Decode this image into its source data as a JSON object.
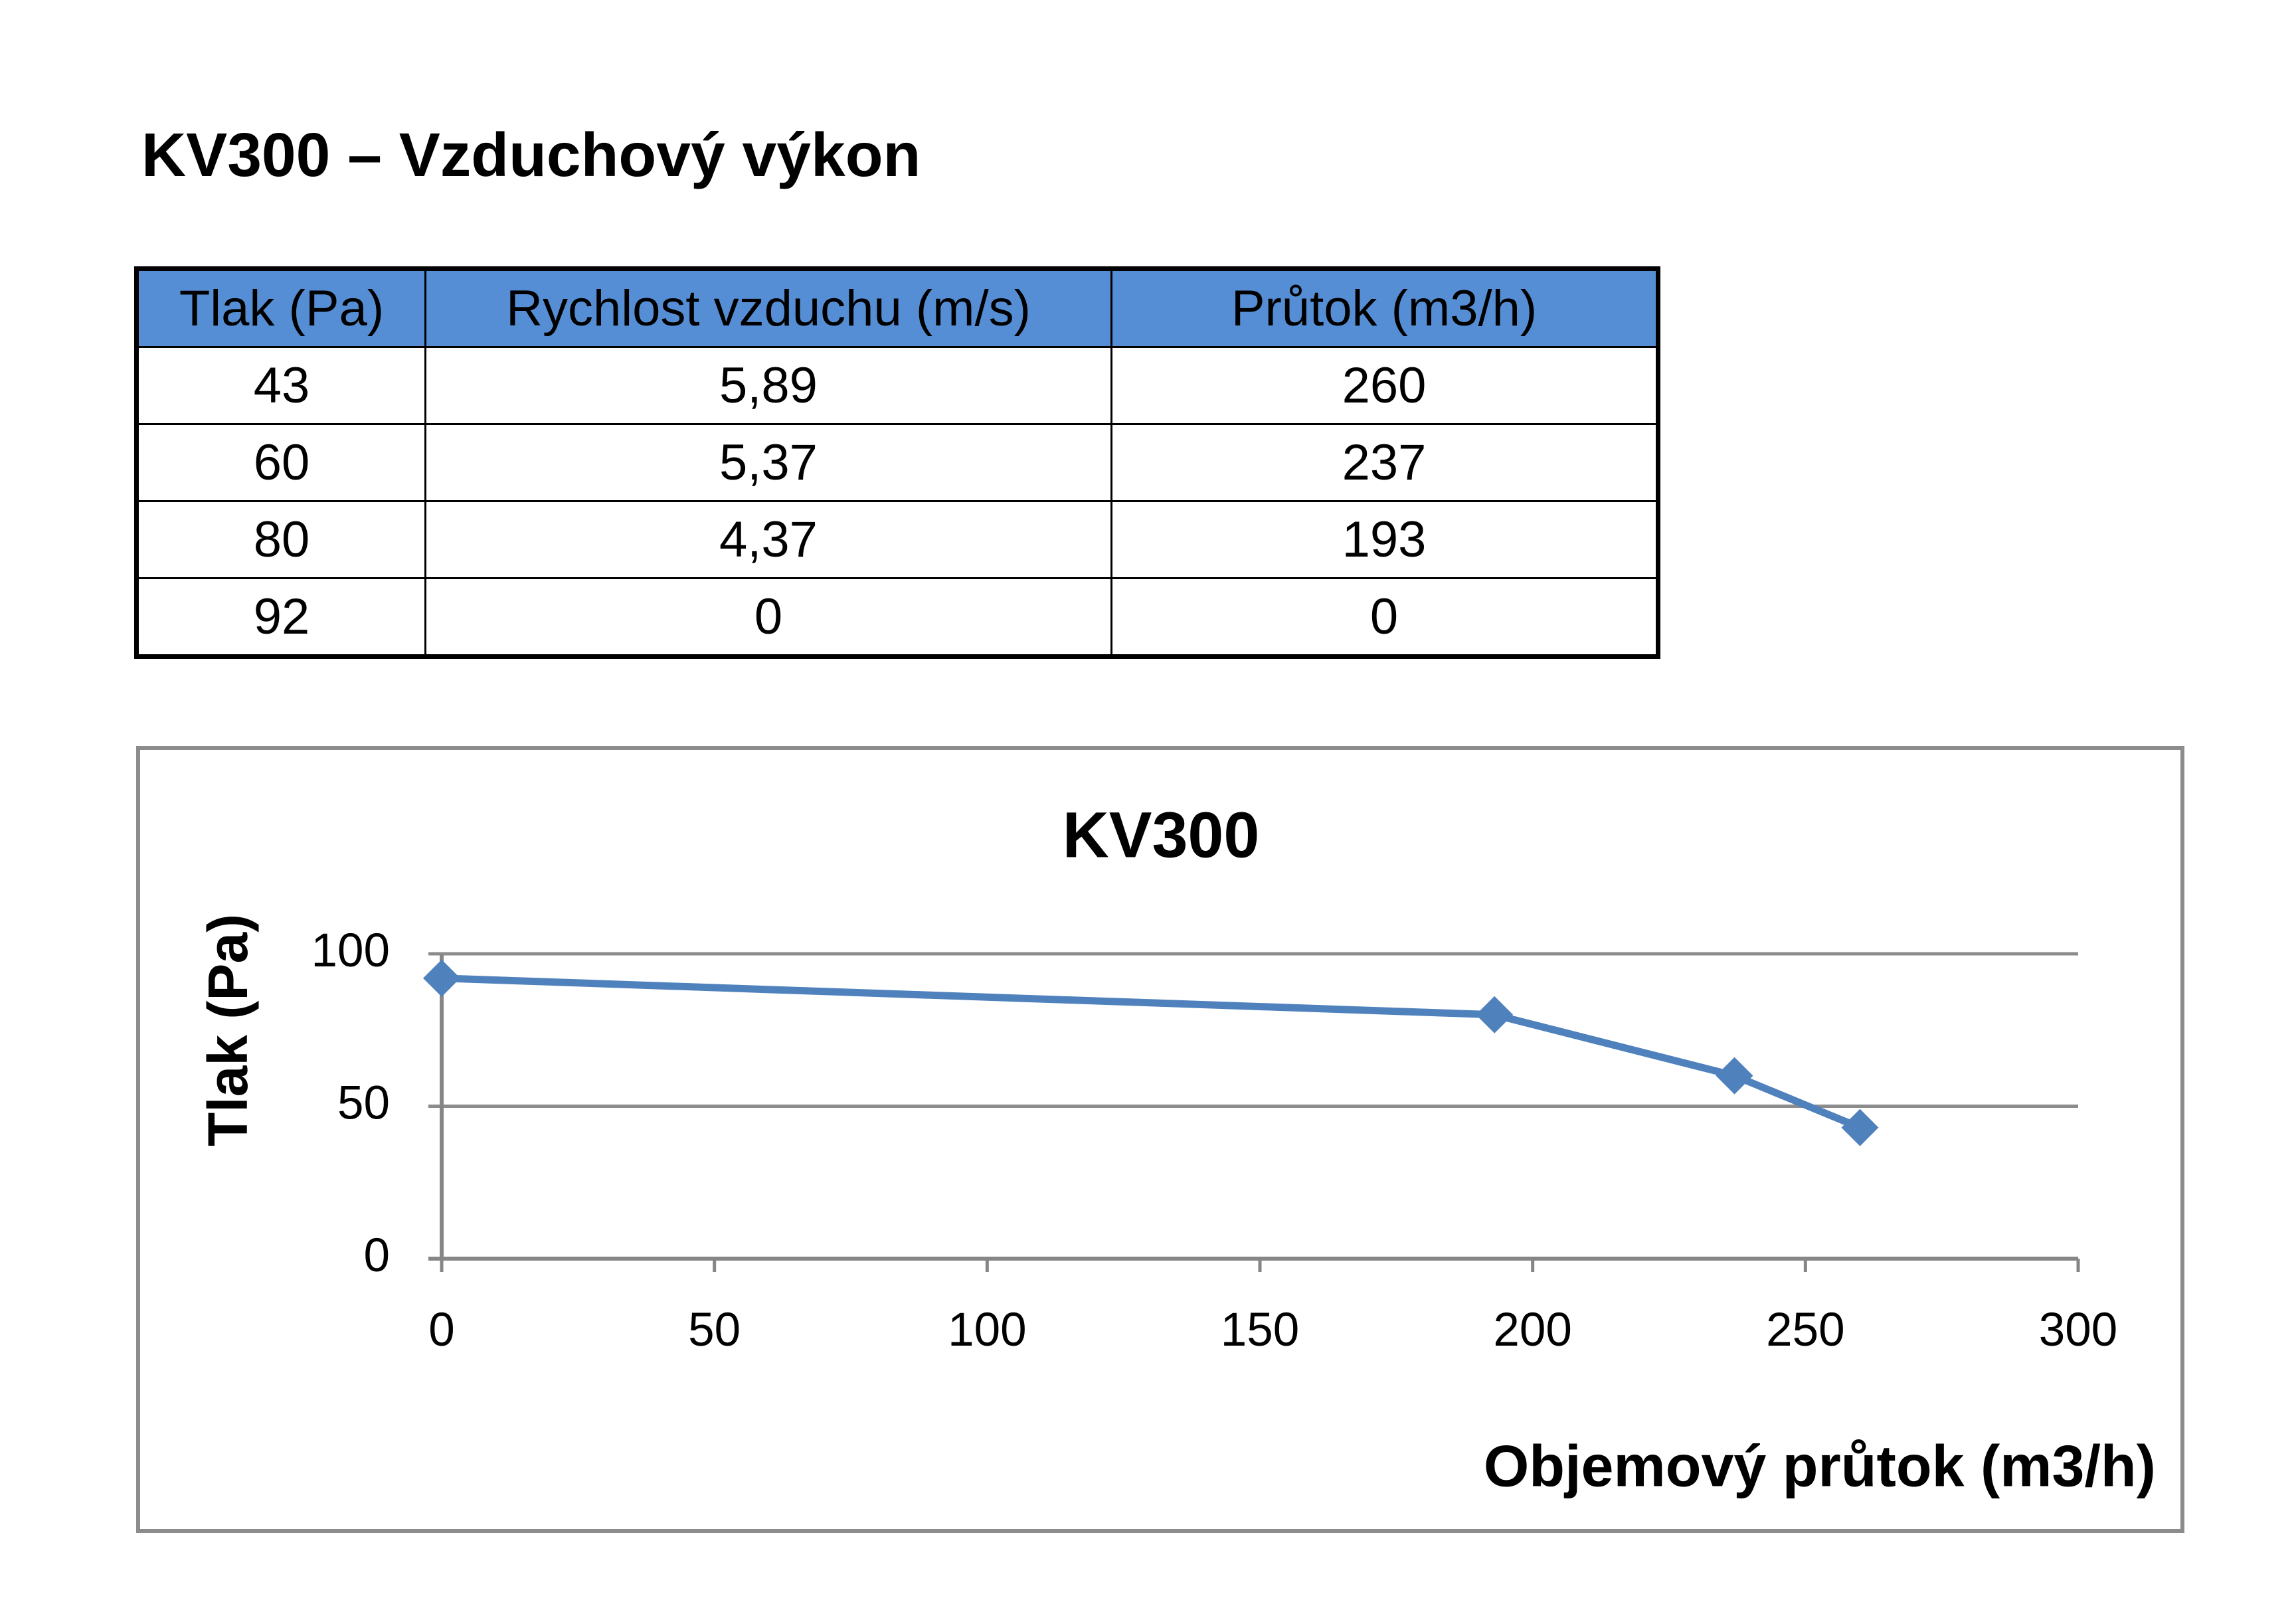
{
  "title": "KV300 – Vzduchový výkon",
  "table": {
    "header": [
      "Tlak (Pa)",
      "Rychlost vzduchu (m/s)",
      "Průtok (m3/h)"
    ],
    "rows": [
      [
        "43",
        "5,89",
        "260"
      ],
      [
        "60",
        "5,37",
        "237"
      ],
      [
        "80",
        "4,37",
        "193"
      ],
      [
        "92",
        "0",
        "0"
      ]
    ]
  },
  "chart_data": {
    "type": "line",
    "title": "KV300",
    "x_label": "Objemový průtok (m3/h)",
    "y_label": "Tlak (Pa)",
    "x": [
      0,
      193,
      237,
      260
    ],
    "series": [
      {
        "name": "Tlak (Pa)",
        "color": "#4f81bd",
        "values": [
          92,
          80,
          60,
          43
        ]
      }
    ],
    "xlim": [
      0,
      300
    ],
    "xticks": [
      0,
      50,
      100,
      150,
      200,
      250,
      300
    ],
    "ylim": [
      0,
      100
    ],
    "yticks": [
      0,
      50,
      100
    ],
    "grid": true
  }
}
